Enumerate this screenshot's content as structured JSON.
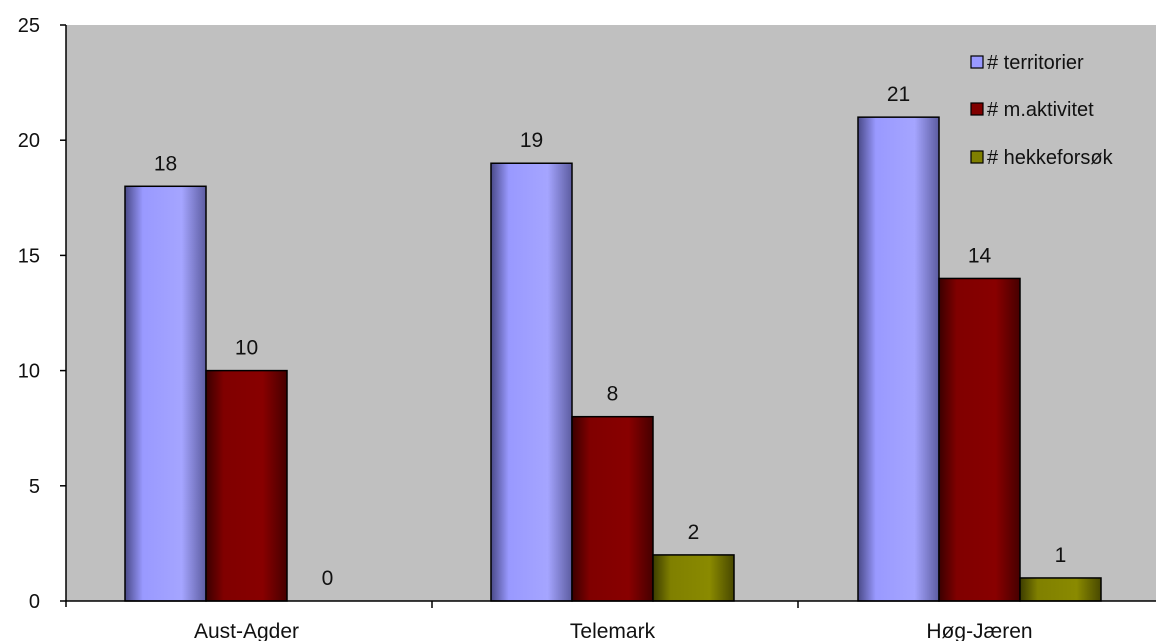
{
  "chart_data": {
    "type": "bar",
    "title": "",
    "xlabel": "",
    "ylabel": "",
    "categories": [
      "Aust-Agder",
      "Telemark",
      "Høg-Jæren"
    ],
    "series": [
      {
        "name": "# territorier",
        "values": [
          18,
          19,
          21
        ],
        "color": "#9999ff"
      },
      {
        "name": "# m.aktivitet",
        "values": [
          10,
          8,
          14
        ],
        "color": "#800000"
      },
      {
        "name": "# hekkeforsøk",
        "values": [
          0,
          2,
          1
        ],
        "color": "#808000"
      }
    ],
    "ylim": [
      0,
      25
    ],
    "yticks": [
      0,
      5,
      10,
      15,
      20,
      25
    ],
    "data_labels": true,
    "grid": false,
    "plot_background": "#c0c0c0",
    "legend_position": "top-right"
  }
}
